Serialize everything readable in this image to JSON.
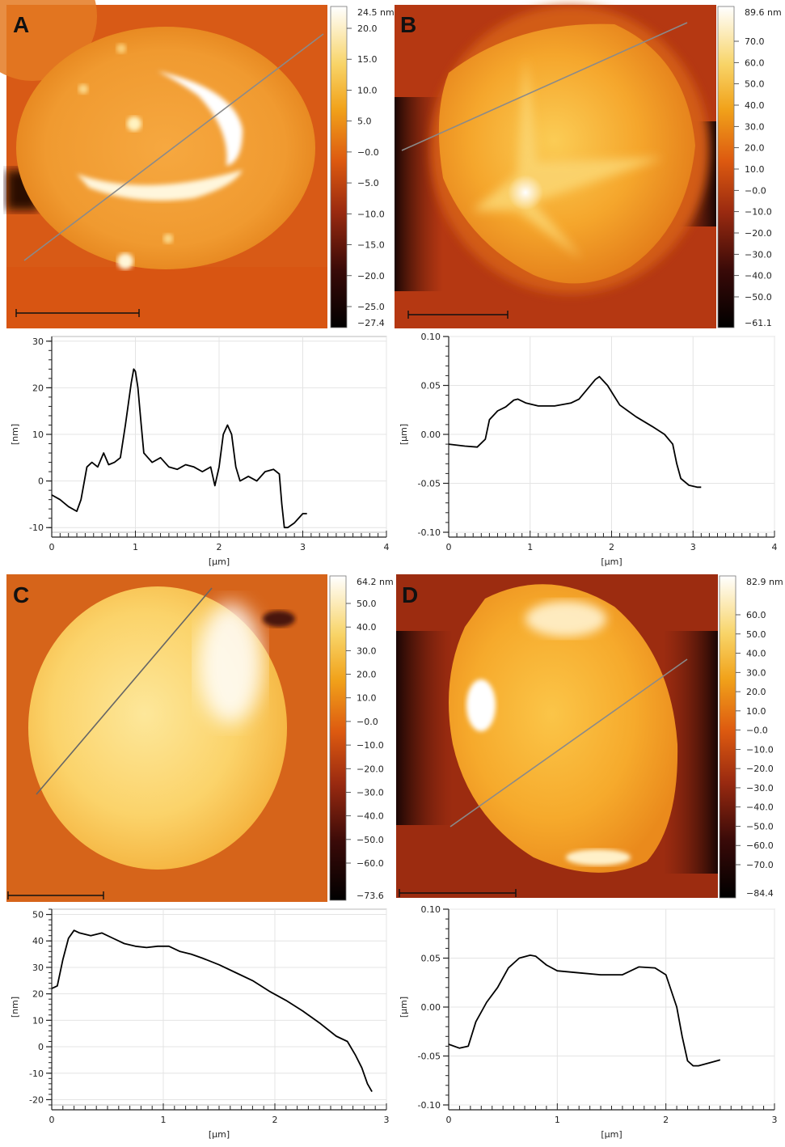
{
  "panels": [
    {
      "letter": "A",
      "colorbar_max_label": "24.5 nm",
      "colorbar_min_label": "−27.4",
      "colorbar_ticks": [
        "20.0",
        "15.0",
        "10.0",
        "5.0",
        "−0.0",
        "−5.0",
        "−10.0",
        "−15.0",
        "−20.0",
        "−25.0"
      ]
    },
    {
      "letter": "B",
      "colorbar_max_label": "89.6 nm",
      "colorbar_min_label": "−61.1",
      "colorbar_ticks": [
        "70.0",
        "60.0",
        "50.0",
        "40.0",
        "30.0",
        "20.0",
        "10.0",
        "−0.0",
        "−10.0",
        "−20.0",
        "−30.0",
        "−40.0",
        "−50.0"
      ]
    },
    {
      "letter": "C",
      "colorbar_max_label": "64.2 nm",
      "colorbar_min_label": "−73.6",
      "colorbar_ticks": [
        "50.0",
        "40.0",
        "30.0",
        "20.0",
        "10.0",
        "−0.0",
        "−10.0",
        "−20.0",
        "−30.0",
        "−40.0",
        "−50.0",
        "−60.0"
      ]
    },
    {
      "letter": "D",
      "colorbar_max_label": "82.9 nm",
      "colorbar_min_label": "−84.4",
      "colorbar_ticks": [
        "60.0",
        "50.0",
        "40.0",
        "30.0",
        "20.0",
        "10.0",
        "−0.0",
        "−10.0",
        "−20.0",
        "−30.0",
        "−40.0",
        "−50.0",
        "−60.0",
        "−70.0"
      ]
    }
  ],
  "chart_data": [
    {
      "type": "line",
      "panel": "A",
      "xlabel": "[µm]",
      "ylabel": "[nm]",
      "xlim": [
        0,
        4
      ],
      "ylim": [
        -11,
        31
      ],
      "x_ticks": [
        0,
        1,
        2,
        3,
        4
      ],
      "x_tick_labels": [
        "0",
        "1",
        "2",
        "3",
        "4"
      ],
      "y_ticks": [
        30,
        20,
        10,
        0,
        -10
      ],
      "y_tick_labels": [
        "30",
        "20",
        "10",
        "0",
        "-10"
      ],
      "grid": true,
      "series": [
        {
          "x": [
            0,
            0.1,
            0.2,
            0.3,
            0.35,
            0.42,
            0.48,
            0.55,
            0.62,
            0.68,
            0.75,
            0.82,
            0.88,
            0.95,
            0.98,
            1.0,
            1.03,
            1.07,
            1.1,
            1.15,
            1.2,
            1.3,
            1.4,
            1.5,
            1.6,
            1.7,
            1.8,
            1.9,
            1.95,
            2.0,
            2.05,
            2.1,
            2.15,
            2.2,
            2.25,
            2.35,
            2.45,
            2.55,
            2.65,
            2.72,
            2.75,
            2.78,
            2.82,
            2.9,
            3.0,
            3.05
          ],
          "y": [
            -3,
            -4,
            -5.5,
            -6.5,
            -4,
            3,
            4,
            3,
            6,
            3.5,
            4,
            5,
            12,
            21,
            24,
            23.5,
            20,
            12,
            6,
            5,
            4,
            5,
            3,
            2.5,
            3.5,
            3,
            2,
            3,
            -1,
            3,
            10,
            12,
            10,
            3,
            0,
            1,
            0,
            2,
            2.5,
            1.5,
            -5,
            -10,
            -10,
            -9,
            -7,
            -7
          ]
        }
      ]
    },
    {
      "type": "line",
      "panel": "B",
      "xlabel": "[µm]",
      "ylabel": "[µm]",
      "xlim": [
        0,
        4
      ],
      "ylim": [
        -0.1,
        0.1
      ],
      "x_ticks": [
        0,
        1,
        2,
        3,
        4
      ],
      "x_tick_labels": [
        "0",
        "1",
        "2",
        "3",
        "4"
      ],
      "y_ticks": [
        0.1,
        0.05,
        0.0,
        -0.05,
        -0.1
      ],
      "y_tick_labels": [
        "0.10",
        "0.05",
        "0.00",
        "-0.05",
        "-0.10"
      ],
      "grid": true,
      "series": [
        {
          "x": [
            0,
            0.2,
            0.35,
            0.45,
            0.5,
            0.6,
            0.7,
            0.8,
            0.85,
            0.95,
            1.1,
            1.3,
            1.5,
            1.6,
            1.7,
            1.8,
            1.85,
            1.95,
            2.1,
            2.3,
            2.5,
            2.65,
            2.75,
            2.8,
            2.85,
            2.95,
            3.05,
            3.1
          ],
          "y": [
            -0.01,
            -0.012,
            -0.013,
            -0.005,
            0.015,
            0.024,
            0.028,
            0.035,
            0.036,
            0.032,
            0.029,
            0.029,
            0.032,
            0.036,
            0.046,
            0.056,
            0.059,
            0.05,
            0.03,
            0.018,
            0.008,
            0.0,
            -0.01,
            -0.03,
            -0.045,
            -0.052,
            -0.054,
            -0.054
          ]
        }
      ]
    },
    {
      "type": "line",
      "panel": "C",
      "xlabel": "[µm]",
      "ylabel": "[nm]",
      "xlim": [
        0,
        3
      ],
      "ylim": [
        -22,
        52
      ],
      "x_ticks": [
        0,
        1,
        2,
        3
      ],
      "x_tick_labels": [
        "0",
        "1",
        "2",
        "3"
      ],
      "y_ticks": [
        50,
        40,
        30,
        20,
        10,
        0,
        -10,
        -20
      ],
      "y_tick_labels": [
        "50",
        "40",
        "30",
        "20",
        "10",
        "0",
        "-10",
        "-20"
      ],
      "grid": true,
      "series": [
        {
          "x": [
            0,
            0.05,
            0.1,
            0.15,
            0.2,
            0.25,
            0.35,
            0.45,
            0.55,
            0.65,
            0.75,
            0.85,
            0.95,
            1.05,
            1.15,
            1.25,
            1.35,
            1.5,
            1.65,
            1.8,
            1.95,
            2.1,
            2.25,
            2.4,
            2.55,
            2.65,
            2.72,
            2.78,
            2.83,
            2.87
          ],
          "y": [
            22,
            23,
            33,
            41,
            44,
            43,
            42,
            43,
            41,
            39,
            38,
            37.5,
            38,
            38,
            36,
            35,
            33.5,
            31,
            28,
            25,
            21,
            17.5,
            13.5,
            9,
            4,
            2,
            -3,
            -8,
            -14,
            -17
          ]
        }
      ]
    },
    {
      "type": "line",
      "panel": "D",
      "xlabel": "[µm]",
      "ylabel": "[µm]",
      "xlim": [
        0,
        3
      ],
      "ylim": [
        -0.1,
        0.1
      ],
      "x_ticks": [
        0,
        1,
        2,
        3
      ],
      "x_tick_labels": [
        "0",
        "1",
        "2",
        "3"
      ],
      "y_ticks": [
        0.1,
        0.05,
        0.0,
        -0.05,
        -0.1
      ],
      "y_tick_labels": [
        "0.10",
        "0.05",
        "0.00",
        "-0.05",
        "-0.10"
      ],
      "grid": true,
      "series": [
        {
          "x": [
            0,
            0.1,
            0.18,
            0.25,
            0.35,
            0.45,
            0.55,
            0.65,
            0.75,
            0.8,
            0.9,
            1.0,
            1.2,
            1.4,
            1.6,
            1.75,
            1.9,
            2.0,
            2.1,
            2.15,
            2.2,
            2.25,
            2.3,
            2.4,
            2.5
          ],
          "y": [
            -0.038,
            -0.042,
            -0.04,
            -0.015,
            0.005,
            0.02,
            0.04,
            0.05,
            0.053,
            0.052,
            0.043,
            0.037,
            0.035,
            0.033,
            0.033,
            0.041,
            0.04,
            0.033,
            0.0,
            -0.03,
            -0.055,
            -0.06,
            -0.06,
            -0.057,
            -0.054
          ]
        }
      ]
    }
  ]
}
